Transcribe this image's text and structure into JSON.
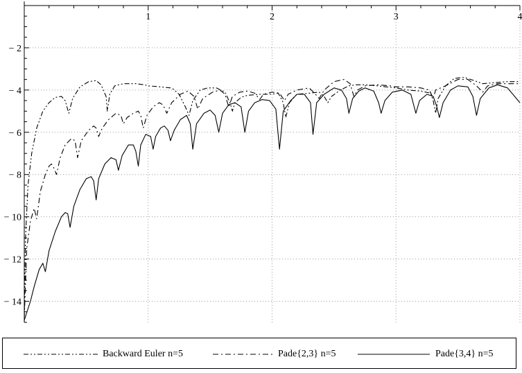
{
  "chart_data": {
    "type": "line",
    "title": "",
    "xlabel": "",
    "ylabel": "",
    "xlim": [
      0,
      4
    ],
    "ylim": [
      -15,
      0
    ],
    "x_ticks": [
      1,
      2,
      3,
      4
    ],
    "y_ticks": [
      -2,
      -4,
      -6,
      -8,
      -10,
      -12,
      -14
    ],
    "x_tick_labels": [
      "1",
      "2",
      "3",
      "4"
    ],
    "y_tick_labels": [
      "-2",
      "-4",
      "-6",
      "-8",
      "-10",
      "-12",
      "-14"
    ],
    "grid": true,
    "legend_position": "bottom",
    "series": [
      {
        "name": "Backward Euler n=5",
        "style": "dash-dot-dot",
        "points": [
          [
            0.0,
            -15.0
          ],
          [
            0.01,
            -11.0
          ],
          [
            0.03,
            -8.5
          ],
          [
            0.06,
            -7.0
          ],
          [
            0.1,
            -5.8
          ],
          [
            0.15,
            -5.0
          ],
          [
            0.2,
            -4.6
          ],
          [
            0.25,
            -4.35
          ],
          [
            0.3,
            -4.3
          ],
          [
            0.33,
            -4.5
          ],
          [
            0.36,
            -5.1
          ],
          [
            0.39,
            -4.4
          ],
          [
            0.45,
            -3.85
          ],
          [
            0.52,
            -3.6
          ],
          [
            0.58,
            -3.55
          ],
          [
            0.62,
            -3.75
          ],
          [
            0.66,
            -4.3
          ],
          [
            0.67,
            -5.0
          ],
          [
            0.69,
            -4.2
          ],
          [
            0.73,
            -3.8
          ],
          [
            0.8,
            -3.7
          ],
          [
            0.9,
            -3.7
          ],
          [
            0.97,
            -3.75
          ],
          [
            1.0,
            -3.8
          ],
          [
            1.1,
            -3.85
          ],
          [
            1.18,
            -3.9
          ],
          [
            1.2,
            -3.95
          ],
          [
            1.25,
            -4.2
          ],
          [
            1.3,
            -4.8
          ],
          [
            1.33,
            -5.2
          ],
          [
            1.36,
            -4.5
          ],
          [
            1.42,
            -4.0
          ],
          [
            1.48,
            -3.9
          ],
          [
            1.55,
            -3.9
          ],
          [
            1.62,
            -4.1
          ],
          [
            1.66,
            -4.6
          ],
          [
            1.68,
            -5.0
          ],
          [
            1.7,
            -4.6
          ],
          [
            1.75,
            -4.35
          ],
          [
            1.8,
            -4.25
          ],
          [
            1.9,
            -4.2
          ],
          [
            2.0,
            -4.2
          ],
          [
            2.05,
            -4.15
          ],
          [
            2.09,
            -4.6
          ],
          [
            2.11,
            -5.3
          ],
          [
            2.14,
            -4.6
          ],
          [
            2.2,
            -4.2
          ],
          [
            2.3,
            -4.15
          ],
          [
            2.38,
            -4.1
          ],
          [
            2.42,
            -4.3
          ],
          [
            2.45,
            -4.6
          ],
          [
            2.48,
            -4.3
          ],
          [
            2.55,
            -4.0
          ],
          [
            2.62,
            -3.8
          ],
          [
            2.68,
            -3.75
          ],
          [
            2.75,
            -3.75
          ],
          [
            2.85,
            -3.8
          ],
          [
            2.92,
            -3.85
          ],
          [
            3.0,
            -3.9
          ],
          [
            3.1,
            -4.0
          ],
          [
            3.2,
            -4.05
          ],
          [
            3.28,
            -4.15
          ],
          [
            3.3,
            -4.5
          ],
          [
            3.32,
            -5.1
          ],
          [
            3.34,
            -4.4
          ],
          [
            3.4,
            -3.8
          ],
          [
            3.47,
            -3.45
          ],
          [
            3.55,
            -3.4
          ],
          [
            3.63,
            -3.55
          ],
          [
            3.7,
            -3.7
          ],
          [
            3.8,
            -3.65
          ],
          [
            3.9,
            -3.6
          ],
          [
            4.0,
            -3.6
          ]
        ]
      },
      {
        "name": "Pade{2,3} n=5",
        "style": "dash-dot",
        "points": [
          [
            0.0,
            -14.8
          ],
          [
            0.02,
            -11.5
          ],
          [
            0.05,
            -10.2
          ],
          [
            0.08,
            -9.6
          ],
          [
            0.1,
            -10.1
          ],
          [
            0.13,
            -8.8
          ],
          [
            0.17,
            -8.0
          ],
          [
            0.2,
            -7.6
          ],
          [
            0.22,
            -7.5
          ],
          [
            0.24,
            -7.7
          ],
          [
            0.26,
            -8.0
          ],
          [
            0.29,
            -7.2
          ],
          [
            0.33,
            -6.6
          ],
          [
            0.38,
            -6.3
          ],
          [
            0.41,
            -6.4
          ],
          [
            0.43,
            -7.2
          ],
          [
            0.46,
            -6.4
          ],
          [
            0.52,
            -5.9
          ],
          [
            0.56,
            -5.7
          ],
          [
            0.58,
            -5.8
          ],
          [
            0.6,
            -6.2
          ],
          [
            0.63,
            -5.8
          ],
          [
            0.68,
            -5.4
          ],
          [
            0.74,
            -5.1
          ],
          [
            0.78,
            -5.2
          ],
          [
            0.8,
            -5.6
          ],
          [
            0.83,
            -5.3
          ],
          [
            0.88,
            -5.1
          ],
          [
            0.92,
            -5.0
          ],
          [
            0.94,
            -5.2
          ],
          [
            0.96,
            -5.8
          ],
          [
            0.99,
            -5.2
          ],
          [
            1.04,
            -4.8
          ],
          [
            1.09,
            -4.6
          ],
          [
            1.12,
            -4.7
          ],
          [
            1.15,
            -5.1
          ],
          [
            1.19,
            -4.6
          ],
          [
            1.26,
            -4.2
          ],
          [
            1.32,
            -4.05
          ],
          [
            1.37,
            -4.3
          ],
          [
            1.4,
            -4.9
          ],
          [
            1.44,
            -4.4
          ],
          [
            1.52,
            -4.1
          ],
          [
            1.58,
            -4.0
          ],
          [
            1.62,
            -4.2
          ],
          [
            1.65,
            -4.8
          ],
          [
            1.68,
            -4.3
          ],
          [
            1.74,
            -4.1
          ],
          [
            1.8,
            -4.05
          ],
          [
            1.86,
            -4.15
          ],
          [
            1.9,
            -4.45
          ],
          [
            1.93,
            -4.2
          ],
          [
            2.0,
            -4.1
          ],
          [
            2.06,
            -4.15
          ],
          [
            2.1,
            -4.5
          ],
          [
            2.13,
            -4.2
          ],
          [
            2.2,
            -4.0
          ],
          [
            2.3,
            -3.9
          ],
          [
            2.35,
            -4.2
          ],
          [
            2.38,
            -4.4
          ],
          [
            2.42,
            -4.0
          ],
          [
            2.5,
            -3.6
          ],
          [
            2.58,
            -3.5
          ],
          [
            2.63,
            -3.7
          ],
          [
            2.66,
            -4.3
          ],
          [
            2.69,
            -4.0
          ],
          [
            2.75,
            -3.8
          ],
          [
            2.85,
            -3.75
          ],
          [
            2.95,
            -3.8
          ],
          [
            3.0,
            -3.85
          ],
          [
            3.1,
            -3.85
          ],
          [
            3.2,
            -3.9
          ],
          [
            3.27,
            -4.0
          ],
          [
            3.3,
            -4.4
          ],
          [
            3.32,
            -4.0
          ],
          [
            3.4,
            -3.8
          ],
          [
            3.5,
            -3.5
          ],
          [
            3.58,
            -3.5
          ],
          [
            3.65,
            -3.8
          ],
          [
            3.7,
            -4.1
          ],
          [
            3.74,
            -3.8
          ],
          [
            3.82,
            -3.7
          ],
          [
            3.9,
            -3.7
          ],
          [
            4.0,
            -3.7
          ]
        ]
      },
      {
        "name": "Pade{3,4} n=5",
        "style": "solid",
        "points": [
          [
            0.0,
            -14.9
          ],
          [
            0.05,
            -14.0
          ],
          [
            0.08,
            -13.3
          ],
          [
            0.12,
            -12.5
          ],
          [
            0.15,
            -12.2
          ],
          [
            0.17,
            -12.6
          ],
          [
            0.2,
            -11.6
          ],
          [
            0.25,
            -10.7
          ],
          [
            0.3,
            -10.0
          ],
          [
            0.33,
            -9.8
          ],
          [
            0.35,
            -9.85
          ],
          [
            0.37,
            -10.5
          ],
          [
            0.4,
            -9.5
          ],
          [
            0.45,
            -8.7
          ],
          [
            0.5,
            -8.2
          ],
          [
            0.54,
            -8.1
          ],
          [
            0.56,
            -8.3
          ],
          [
            0.58,
            -9.2
          ],
          [
            0.6,
            -8.2
          ],
          [
            0.65,
            -7.5
          ],
          [
            0.7,
            -7.2
          ],
          [
            0.74,
            -7.3
          ],
          [
            0.76,
            -7.8
          ],
          [
            0.79,
            -7.1
          ],
          [
            0.84,
            -6.6
          ],
          [
            0.88,
            -6.6
          ],
          [
            0.9,
            -6.9
          ],
          [
            0.92,
            -7.6
          ],
          [
            0.94,
            -6.6
          ],
          [
            0.98,
            -6.1
          ],
          [
            1.02,
            -6.2
          ],
          [
            1.04,
            -6.8
          ],
          [
            1.06,
            -6.2
          ],
          [
            1.1,
            -5.8
          ],
          [
            1.13,
            -5.7
          ],
          [
            1.16,
            -5.9
          ],
          [
            1.18,
            -6.4
          ],
          [
            1.21,
            -5.9
          ],
          [
            1.26,
            -5.4
          ],
          [
            1.31,
            -5.2
          ],
          [
            1.34,
            -5.6
          ],
          [
            1.36,
            -6.8
          ],
          [
            1.39,
            -5.6
          ],
          [
            1.45,
            -5.1
          ],
          [
            1.5,
            -4.95
          ],
          [
            1.54,
            -5.2
          ],
          [
            1.57,
            -6.0
          ],
          [
            1.6,
            -5.1
          ],
          [
            1.65,
            -4.7
          ],
          [
            1.7,
            -4.6
          ],
          [
            1.75,
            -4.8
          ],
          [
            1.78,
            -6.0
          ],
          [
            1.81,
            -5.0
          ],
          [
            1.86,
            -4.6
          ],
          [
            1.92,
            -4.45
          ],
          [
            1.98,
            -4.5
          ],
          [
            2.03,
            -4.9
          ],
          [
            2.06,
            -6.8
          ],
          [
            2.09,
            -5.0
          ],
          [
            2.15,
            -4.5
          ],
          [
            2.2,
            -4.2
          ],
          [
            2.26,
            -4.2
          ],
          [
            2.31,
            -4.6
          ],
          [
            2.33,
            -6.1
          ],
          [
            2.36,
            -4.6
          ],
          [
            2.42,
            -4.2
          ],
          [
            2.5,
            -3.9
          ],
          [
            2.56,
            -4.0
          ],
          [
            2.6,
            -4.4
          ],
          [
            2.62,
            -5.1
          ],
          [
            2.65,
            -4.4
          ],
          [
            2.7,
            -4.05
          ],
          [
            2.75,
            -3.9
          ],
          [
            2.82,
            -4.05
          ],
          [
            2.86,
            -4.6
          ],
          [
            2.88,
            -5.1
          ],
          [
            2.91,
            -4.5
          ],
          [
            2.97,
            -4.1
          ],
          [
            3.05,
            -4.0
          ],
          [
            3.12,
            -4.2
          ],
          [
            3.16,
            -5.1
          ],
          [
            3.19,
            -4.5
          ],
          [
            3.25,
            -4.2
          ],
          [
            3.3,
            -4.3
          ],
          [
            3.33,
            -4.8
          ],
          [
            3.35,
            -5.3
          ],
          [
            3.38,
            -4.6
          ],
          [
            3.44,
            -4.0
          ],
          [
            3.5,
            -3.8
          ],
          [
            3.58,
            -3.85
          ],
          [
            3.62,
            -4.3
          ],
          [
            3.65,
            -5.2
          ],
          [
            3.68,
            -4.4
          ],
          [
            3.75,
            -3.9
          ],
          [
            3.82,
            -3.75
          ],
          [
            3.9,
            -3.9
          ],
          [
            4.0,
            -4.6
          ]
        ]
      }
    ]
  }
}
